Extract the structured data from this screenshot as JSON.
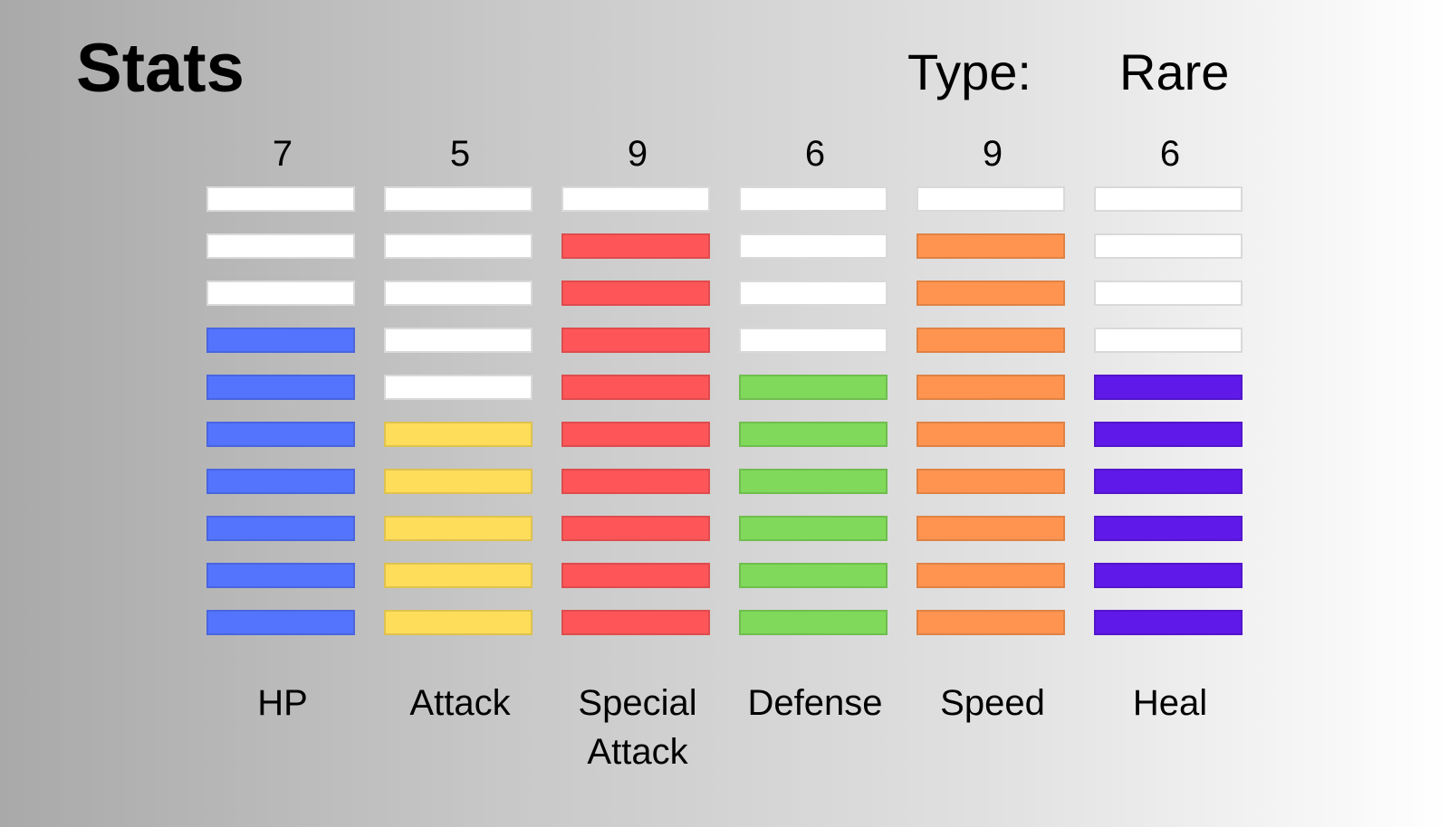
{
  "header": {
    "title": "Stats",
    "type_label": "Type:",
    "type_value": "Rare"
  },
  "scale_max": 10,
  "stats": [
    {
      "name": "HP",
      "value": 7,
      "value_label": "7",
      "color": "#5474fe"
    },
    {
      "name": "Attack",
      "value": 5,
      "value_label": "5",
      "color": "#fedd5a"
    },
    {
      "name": "Special Attack",
      "value": 9,
      "value_label": "9",
      "color": "#fe5658"
    },
    {
      "name": "Defense",
      "value": 6,
      "value_label": "6",
      "color": "#80d95a"
    },
    {
      "name": "Speed",
      "value": 9,
      "value_label": "9",
      "color": "#fe944f"
    },
    {
      "name": "Heal",
      "value": 6,
      "value_label": "6",
      "color": "#5f19e8"
    }
  ]
}
